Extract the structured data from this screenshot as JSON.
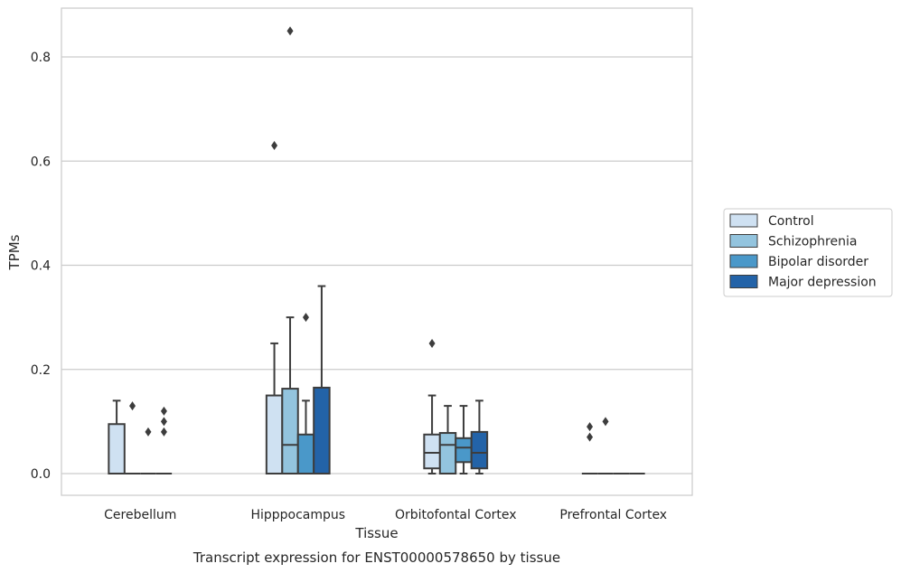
{
  "chart_data": {
    "type": "box",
    "title": "",
    "xlabel": "Tissue",
    "ylabel": "TPMs",
    "caption": "Transcript expression for ENST00000578650 by tissue",
    "ylim": [
      -0.04,
      0.89
    ],
    "yticks": [
      0.0,
      0.2,
      0.4,
      0.6,
      0.8
    ],
    "ytick_labels": [
      "0.0",
      "0.2",
      "0.4",
      "0.6",
      "0.8"
    ],
    "grid": "horizontal",
    "legend_position": "right",
    "categories": [
      "Cerebellum",
      "Hipppocampus",
      "Orbitofontal Cortex",
      "Prefrontal Cortex"
    ],
    "series": [
      {
        "name": "Control",
        "color": "#cfe1f2",
        "boxes": [
          {
            "whislo": 0.0,
            "q1": 0.0,
            "med": 0.0,
            "q3": 0.095,
            "whishi": 0.14,
            "fliers": []
          },
          {
            "whislo": 0.0,
            "q1": 0.0,
            "med": 0.0,
            "q3": 0.15,
            "whishi": 0.25,
            "fliers": [
              0.63
            ]
          },
          {
            "whislo": 0.0,
            "q1": 0.01,
            "med": 0.04,
            "q3": 0.075,
            "whishi": 0.15,
            "fliers": [
              0.25
            ]
          },
          {
            "whislo": 0.0,
            "q1": 0.0,
            "med": 0.0,
            "q3": 0.0,
            "whishi": 0.0,
            "fliers": [
              0.07,
              0.09
            ]
          }
        ]
      },
      {
        "name": "Schizophrenia",
        "color": "#93c4de",
        "boxes": [
          {
            "whislo": 0.0,
            "q1": 0.0,
            "med": 0.0,
            "q3": 0.0,
            "whishi": 0.0,
            "fliers": [
              0.13
            ]
          },
          {
            "whislo": 0.0,
            "q1": 0.0,
            "med": 0.055,
            "q3": 0.163,
            "whishi": 0.3,
            "fliers": [
              0.85
            ]
          },
          {
            "whislo": 0.0,
            "q1": 0.0,
            "med": 0.055,
            "q3": 0.078,
            "whishi": 0.13,
            "fliers": []
          },
          {
            "whislo": 0.0,
            "q1": 0.0,
            "med": 0.0,
            "q3": 0.0,
            "whishi": 0.0,
            "fliers": [
              0.1
            ]
          }
        ]
      },
      {
        "name": "Bipolar disorder",
        "color": "#4a98c9",
        "boxes": [
          {
            "whislo": 0.0,
            "q1": 0.0,
            "med": 0.0,
            "q3": 0.0,
            "whishi": 0.0,
            "fliers": [
              0.08
            ]
          },
          {
            "whislo": 0.0,
            "q1": 0.0,
            "med": 0.0,
            "q3": 0.075,
            "whishi": 0.14,
            "fliers": [
              0.3
            ]
          },
          {
            "whislo": 0.0,
            "q1": 0.022,
            "med": 0.05,
            "q3": 0.068,
            "whishi": 0.13,
            "fliers": []
          },
          {
            "whislo": 0.0,
            "q1": 0.0,
            "med": 0.0,
            "q3": 0.0,
            "whishi": 0.0,
            "fliers": []
          }
        ]
      },
      {
        "name": "Major depression",
        "color": "#2363a8",
        "boxes": [
          {
            "whislo": 0.0,
            "q1": 0.0,
            "med": 0.0,
            "q3": 0.0,
            "whishi": 0.0,
            "fliers": [
              0.08,
              0.1,
              0.12
            ]
          },
          {
            "whislo": 0.0,
            "q1": 0.0,
            "med": 0.0,
            "q3": 0.165,
            "whishi": 0.36,
            "fliers": []
          },
          {
            "whislo": 0.0,
            "q1": 0.01,
            "med": 0.04,
            "q3": 0.08,
            "whishi": 0.14,
            "fliers": []
          },
          {
            "whislo": 0.0,
            "q1": 0.0,
            "med": 0.0,
            "q3": 0.0,
            "whishi": 0.0,
            "fliers": []
          }
        ]
      }
    ]
  }
}
